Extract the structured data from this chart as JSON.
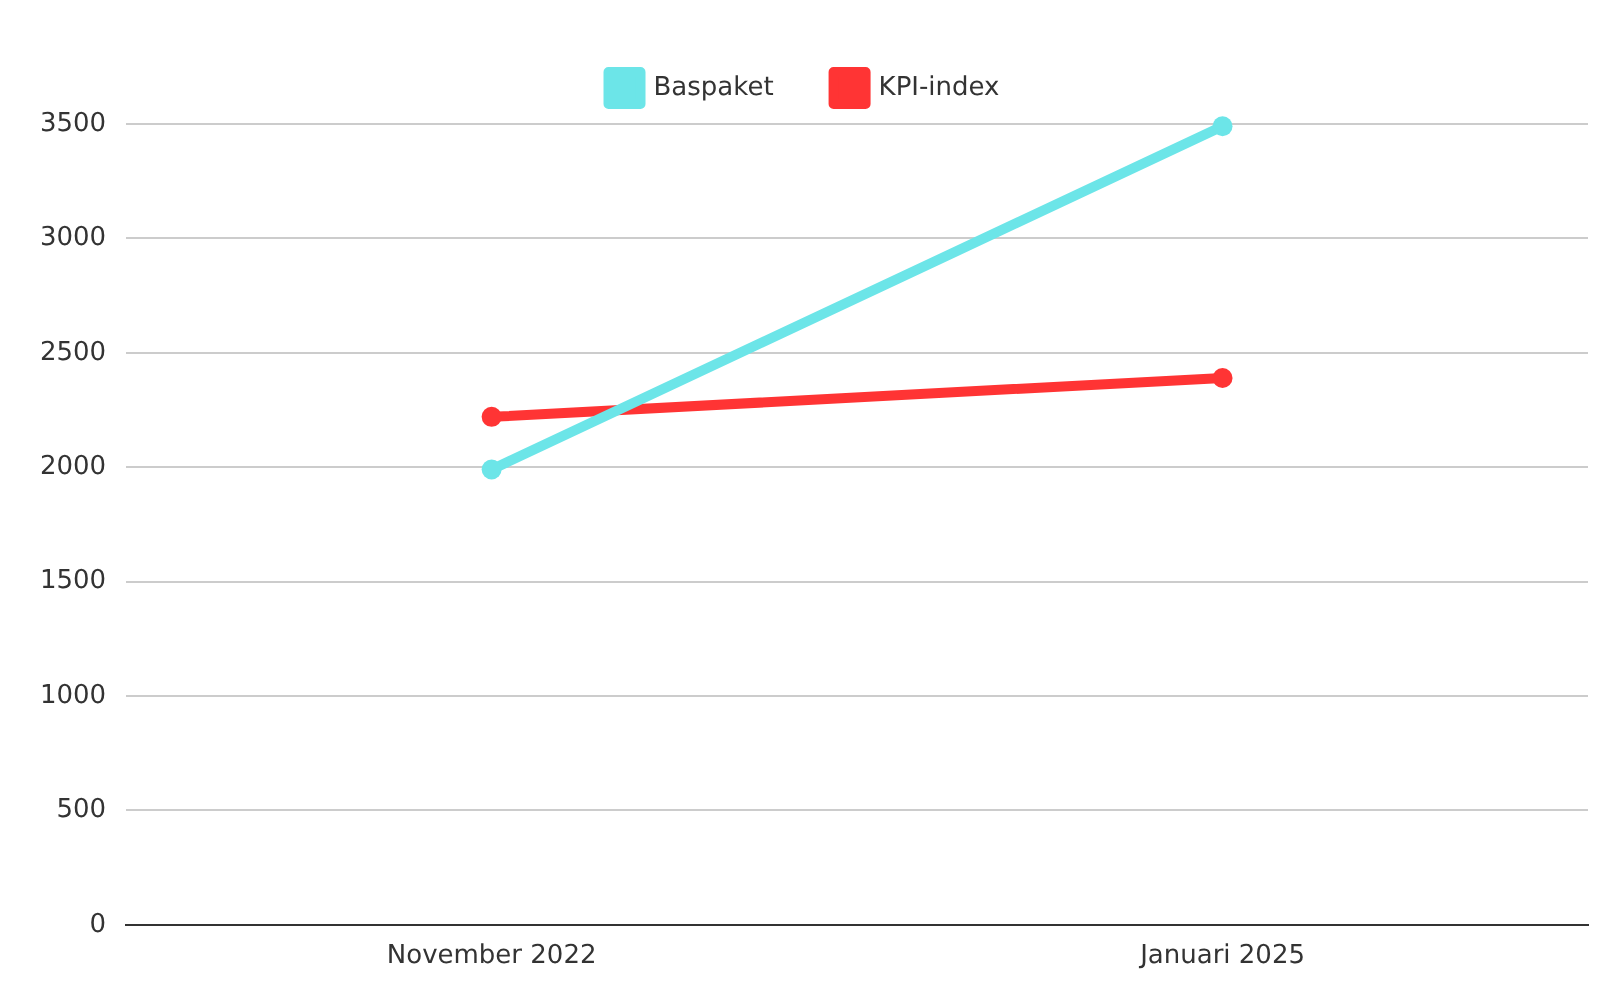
{
  "chart_data": {
    "type": "line",
    "categories": [
      "November 2022",
      "Januari 2025"
    ],
    "series": [
      {
        "name": "Baspaket",
        "color": "#6ce5e8",
        "values": [
          1990,
          3490
        ]
      },
      {
        "name": "KPI-index",
        "color": "#ff3434",
        "values": [
          2220,
          2390
        ]
      }
    ],
    "ylim": [
      0,
      3500
    ],
    "yticks": [
      0,
      500,
      1000,
      1500,
      2000,
      2500,
      3000,
      3500
    ],
    "grid": "y",
    "legend": "top",
    "marker": "circle",
    "line_style": "solid"
  }
}
